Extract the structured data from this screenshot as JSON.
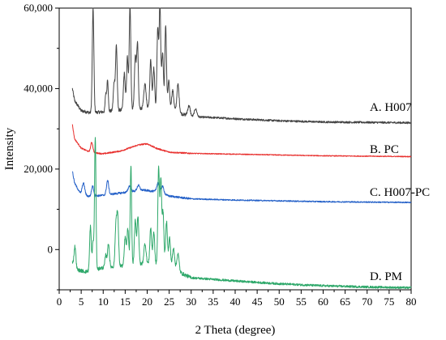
{
  "chart_data": {
    "type": "line",
    "title": "",
    "xlabel": "2 Theta (degree)",
    "ylabel": "Intensity",
    "xlim": [
      0,
      80
    ],
    "ylim": [
      -10000,
      60000
    ],
    "x_ticks": [
      0,
      5,
      10,
      15,
      20,
      25,
      30,
      35,
      40,
      45,
      50,
      55,
      60,
      65,
      70,
      75,
      80
    ],
    "y_ticks": [
      {
        "value": 60000,
        "label": "60,000"
      },
      {
        "value": 40000,
        "label": "40,000"
      },
      {
        "value": 20000,
        "label": "20,000"
      },
      {
        "value": 0,
        "label": "0"
      }
    ],
    "grid": false,
    "legend": "none",
    "series": [
      {
        "name": "A. H007",
        "color": "#444444",
        "baseline": [
          [
            3,
            40000
          ],
          [
            3.5,
            37000
          ],
          [
            5,
            34500
          ],
          [
            7,
            34000
          ],
          [
            10,
            34200
          ],
          [
            15,
            34800
          ],
          [
            20,
            35200
          ],
          [
            25,
            34800
          ],
          [
            27,
            34000
          ],
          [
            30,
            33000
          ],
          [
            35,
            32800
          ],
          [
            40,
            32500
          ],
          [
            50,
            32000
          ],
          [
            60,
            31700
          ],
          [
            70,
            31600
          ],
          [
            80,
            31500
          ]
        ],
        "peaks": [
          [
            7.7,
            26000,
            0.18
          ],
          [
            10.6,
            4500,
            0.15
          ],
          [
            11.0,
            8000,
            0.15
          ],
          [
            12.5,
            7000,
            0.2
          ],
          [
            13.0,
            16000,
            0.18
          ],
          [
            14.8,
            9000,
            0.2
          ],
          [
            15.5,
            13000,
            0.18
          ],
          [
            16.1,
            26000,
            0.18
          ],
          [
            17.3,
            13000,
            0.2
          ],
          [
            17.8,
            16000,
            0.18
          ],
          [
            19.5,
            6000,
            0.25
          ],
          [
            20.8,
            12000,
            0.2
          ],
          [
            21.5,
            10000,
            0.2
          ],
          [
            22.4,
            20000,
            0.18
          ],
          [
            22.9,
            26000,
            0.18
          ],
          [
            23.5,
            14000,
            0.2
          ],
          [
            24.2,
            21000,
            0.18
          ],
          [
            24.9,
            7000,
            0.2
          ],
          [
            25.8,
            5000,
            0.25
          ],
          [
            27.0,
            7000,
            0.25
          ],
          [
            29.5,
            2500,
            0.3
          ],
          [
            31.0,
            2000,
            0.3
          ]
        ],
        "noise": 400
      },
      {
        "name": "B. PC",
        "color": "#e8302e",
        "baseline": [
          [
            3,
            31000
          ],
          [
            3.5,
            27500
          ],
          [
            5,
            25200
          ],
          [
            7,
            24200
          ],
          [
            10,
            23800
          ],
          [
            14,
            24500
          ],
          [
            18,
            26000
          ],
          [
            20,
            26300
          ],
          [
            22,
            25200
          ],
          [
            25,
            24200
          ],
          [
            30,
            23900
          ],
          [
            40,
            23700
          ],
          [
            50,
            23500
          ],
          [
            60,
            23300
          ],
          [
            70,
            23200
          ],
          [
            80,
            23100
          ]
        ],
        "peaks": [
          [
            7.4,
            2500,
            0.25
          ]
        ],
        "noise": 180
      },
      {
        "name": "C. H007-PC",
        "color": "#2561c8",
        "baseline": [
          [
            3,
            19500
          ],
          [
            3.5,
            16500
          ],
          [
            5,
            13600
          ],
          [
            7,
            13200
          ],
          [
            10,
            13500
          ],
          [
            15,
            14200
          ],
          [
            19,
            14800
          ],
          [
            22,
            14400
          ],
          [
            25,
            13300
          ],
          [
            30,
            12600
          ],
          [
            40,
            12300
          ],
          [
            50,
            12100
          ],
          [
            60,
            11900
          ],
          [
            70,
            11800
          ],
          [
            80,
            11700
          ]
        ],
        "peaks": [
          [
            5.5,
            3000,
            0.3
          ],
          [
            7.6,
            2500,
            0.25
          ],
          [
            11.0,
            3500,
            0.25
          ],
          [
            16.0,
            1500,
            0.3
          ],
          [
            18.0,
            1300,
            0.3
          ],
          [
            22.5,
            2500,
            0.3
          ],
          [
            23.5,
            1800,
            0.3
          ]
        ],
        "noise": 250
      },
      {
        "name": "D. PM",
        "color": "#2ea86a",
        "baseline": [
          [
            3,
            -3000
          ],
          [
            4,
            -5000
          ],
          [
            6,
            -5500
          ],
          [
            10,
            -4500
          ],
          [
            15,
            -4000
          ],
          [
            20,
            -3500
          ],
          [
            25,
            -4000
          ],
          [
            27,
            -5500
          ],
          [
            30,
            -7000
          ],
          [
            40,
            -7800
          ],
          [
            50,
            -8500
          ],
          [
            60,
            -9000
          ],
          [
            70,
            -9300
          ],
          [
            80,
            -9500
          ]
        ],
        "peaks": [
          [
            3.6,
            5000,
            0.2
          ],
          [
            7.1,
            11000,
            0.18
          ],
          [
            7.7,
            7000,
            0.18
          ],
          [
            8.2,
            33000,
            0.16
          ],
          [
            10.6,
            3000,
            0.2
          ],
          [
            11.2,
            6000,
            0.2
          ],
          [
            12.9,
            10000,
            0.2
          ],
          [
            13.3,
            12000,
            0.2
          ],
          [
            15.0,
            7000,
            0.2
          ],
          [
            15.6,
            9000,
            0.2
          ],
          [
            16.3,
            25000,
            0.16
          ],
          [
            17.3,
            11000,
            0.2
          ],
          [
            17.9,
            12000,
            0.2
          ],
          [
            19.5,
            5000,
            0.25
          ],
          [
            20.8,
            9000,
            0.2
          ],
          [
            21.5,
            8000,
            0.2
          ],
          [
            22.6,
            24000,
            0.18
          ],
          [
            23.1,
            21000,
            0.18
          ],
          [
            23.6,
            13000,
            0.2
          ],
          [
            24.4,
            11000,
            0.2
          ],
          [
            25.1,
            7000,
            0.2
          ],
          [
            26.0,
            5000,
            0.25
          ],
          [
            27.0,
            4500,
            0.25
          ]
        ],
        "noise": 450
      }
    ]
  }
}
